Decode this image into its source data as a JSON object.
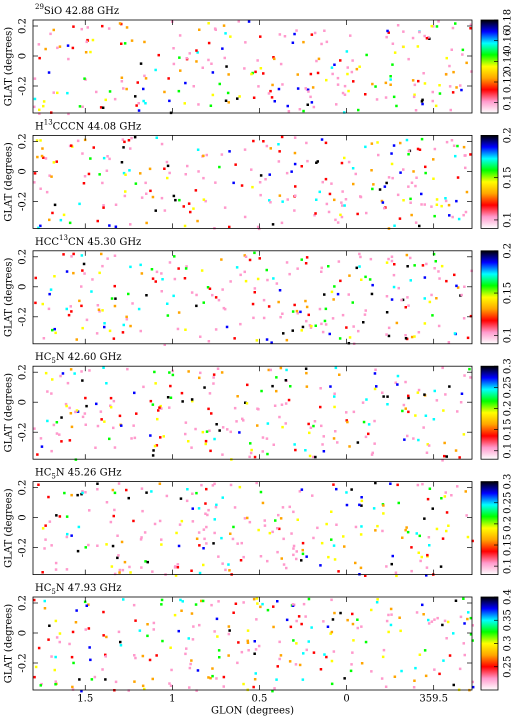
{
  "chart_data": [
    {
      "type": "heatmap",
      "title": [
        {
          "sup": "29"
        },
        {
          "text": "SiO 42.88 GHz"
        }
      ],
      "ylabel": "GLAT (degrees)",
      "ylim": [
        -0.38,
        0.24
      ],
      "yticks": [
        -0.2,
        0,
        0.2
      ],
      "colorlim": [
        0.09,
        0.18
      ],
      "colorticks": [
        0.1,
        0.12,
        0.14,
        0.16,
        0.18
      ],
      "colormap": [
        "#ffffff",
        "#ff99cc",
        "#ff0000",
        "#ffa500",
        "#ffff00",
        "#00ff00",
        "#00ffff",
        "#0000ff",
        "#000000"
      ]
    },
    {
      "type": "heatmap",
      "title": [
        {
          "text": "H"
        },
        {
          "sup": "13"
        },
        {
          "text": "CCCN 44.08 GHz"
        }
      ],
      "ylabel": "GLAT (degrees)",
      "ylim": [
        -0.38,
        0.24
      ],
      "yticks": [
        -0.2,
        0,
        0.2
      ],
      "colorlim": [
        0.09,
        0.2
      ],
      "colorticks": [
        0.1,
        0.15,
        0.2
      ],
      "colormap": [
        "#ffffff",
        "#ff99cc",
        "#ff0000",
        "#ffa500",
        "#ffff00",
        "#00ff00",
        "#00ffff",
        "#0000ff",
        "#000000"
      ]
    },
    {
      "type": "heatmap",
      "title": [
        {
          "text": "HCC"
        },
        {
          "sup": "13"
        },
        {
          "text": "CN 45.30 GHz"
        }
      ],
      "ylabel": "GLAT (degrees)",
      "ylim": [
        -0.38,
        0.24
      ],
      "yticks": [
        -0.2,
        0,
        0.2
      ],
      "colorlim": [
        0.09,
        0.2
      ],
      "colorticks": [
        0.1,
        0.15,
        0.2
      ],
      "colormap": [
        "#ffffff",
        "#ff99cc",
        "#ff0000",
        "#ffa500",
        "#ffff00",
        "#00ff00",
        "#00ffff",
        "#0000ff",
        "#000000"
      ]
    },
    {
      "type": "heatmap",
      "title": [
        {
          "text": "HC"
        },
        {
          "sub": "5"
        },
        {
          "text": "N 42.60 GHz"
        }
      ],
      "ylabel": "GLAT (degrees)",
      "ylim": [
        -0.38,
        0.24
      ],
      "yticks": [
        -0.2,
        0,
        0.2
      ],
      "colorlim": [
        0.08,
        0.3
      ],
      "colorticks": [
        0.1,
        0.15,
        0.2,
        0.25,
        0.3
      ],
      "colormap": [
        "#ffffff",
        "#ff99cc",
        "#ff0000",
        "#ffa500",
        "#ffff00",
        "#00ff00",
        "#00ffff",
        "#0000ff",
        "#000000"
      ]
    },
    {
      "type": "heatmap",
      "title": [
        {
          "text": "HC"
        },
        {
          "sub": "5"
        },
        {
          "text": "N 45.26 GHz"
        }
      ],
      "ylabel": "GLAT (degrees)",
      "ylim": [
        -0.38,
        0.24
      ],
      "yticks": [
        -0.2,
        0,
        0.2
      ],
      "colorlim": [
        0.08,
        0.3
      ],
      "colorticks": [
        0.1,
        0.15,
        0.2,
        0.25,
        0.3
      ],
      "colormap": [
        "#ffffff",
        "#ff99cc",
        "#ff0000",
        "#ffa500",
        "#ffff00",
        "#00ff00",
        "#00ffff",
        "#0000ff",
        "#000000"
      ]
    },
    {
      "type": "heatmap",
      "title": [
        {
          "text": "HC"
        },
        {
          "sub": "5"
        },
        {
          "text": "N 47.93 GHz"
        }
      ],
      "ylabel": "GLAT (degrees)",
      "xlabel": "GLON (degrees)",
      "ylim": [
        -0.38,
        0.24
      ],
      "yticks": [
        -0.2,
        0,
        0.2
      ],
      "xlim": [
        1.8,
        -0.72
      ],
      "xticks": [
        1.5,
        1,
        0.5,
        0,
        {
          "value": -0.5,
          "label": "359.5"
        }
      ],
      "colorlim": [
        0.2,
        0.4
      ],
      "colorticks": [
        0.25,
        0.3,
        0.35,
        0.4
      ],
      "colormap": [
        "#ffffff",
        "#ff99cc",
        "#ff0000",
        "#ffa500",
        "#ffff00",
        "#00ff00",
        "#00ffff",
        "#0000ff",
        "#000000"
      ]
    }
  ]
}
